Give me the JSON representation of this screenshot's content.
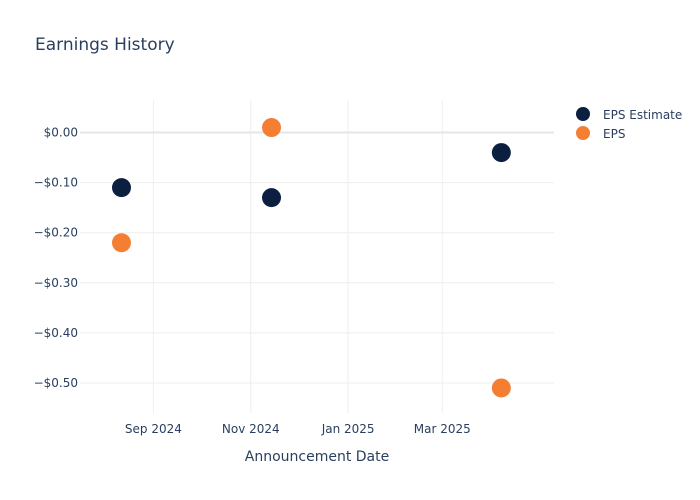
{
  "chart_data": {
    "type": "scatter",
    "title": "Earnings History",
    "xlabel": "Announcement Date",
    "ylabel": "",
    "x_ticks": [
      "Sep 2024",
      "Nov 2024",
      "Jan 2025",
      "Mar 2025"
    ],
    "x_tick_dates": [
      "2024-09-01",
      "2024-11-01",
      "2025-01-01",
      "2025-03-01"
    ],
    "xlim": [
      "2024-07-17",
      "2025-05-10"
    ],
    "y_ticks": [
      0,
      -0.1,
      -0.2,
      -0.3,
      -0.4,
      -0.5
    ],
    "y_tick_labels": [
      "$0.00",
      "−$0.10",
      "−$0.20",
      "−$0.30",
      "−$0.40",
      "−$0.50"
    ],
    "ylim": [
      -0.56,
      0.065
    ],
    "grid": true,
    "legend_position": "top-right",
    "series": [
      {
        "name": "EPS Estimate",
        "color": "#0b1f41",
        "points": [
          {
            "x": "2024-08-12",
            "y": -0.11
          },
          {
            "x": "2024-11-14",
            "y": -0.13
          },
          {
            "x": "2025-04-07",
            "y": -0.04
          }
        ]
      },
      {
        "name": "EPS",
        "color": "#f47f33",
        "points": [
          {
            "x": "2024-08-12",
            "y": -0.22
          },
          {
            "x": "2024-11-14",
            "y": 0.01
          },
          {
            "x": "2025-04-07",
            "y": -0.51
          }
        ]
      }
    ]
  }
}
